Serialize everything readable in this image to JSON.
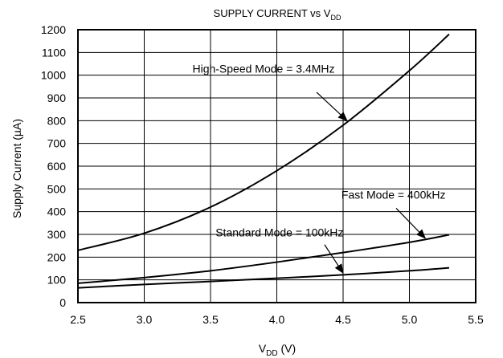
{
  "chart_data": {
    "type": "line",
    "title": "SUPPLY CURRENT vs V",
    "title_sub": "DD",
    "xlabel": "V",
    "xlabel_sub": "DD",
    "xlabel_suffix": " (V)",
    "ylabel": "Supply Current (µA)",
    "xlim": [
      2.5,
      5.5
    ],
    "ylim": [
      0,
      1200
    ],
    "xticks": [
      2.5,
      3.0,
      3.5,
      4.0,
      4.5,
      5.0,
      5.5
    ],
    "xtick_labels": [
      "2.5",
      "3.0",
      "3.5",
      "4.0",
      "4.5",
      "5.0",
      "5.5"
    ],
    "yticks": [
      0,
      100,
      200,
      300,
      400,
      500,
      600,
      700,
      800,
      900,
      1000,
      1100,
      1200
    ],
    "ytick_labels": [
      "0",
      "100",
      "200",
      "300",
      "400",
      "500",
      "600",
      "700",
      "800",
      "900",
      "1000",
      "1100",
      "1200"
    ],
    "grid": true,
    "series": [
      {
        "name": "High-Speed Mode = 3.4MHz",
        "x": [
          2.5,
          3.0,
          3.5,
          4.0,
          4.5,
          5.0,
          5.3
        ],
        "y": [
          230,
          305,
          420,
          580,
          780,
          1020,
          1180
        ]
      },
      {
        "name": "Fast Mode = 400kHz",
        "x": [
          2.5,
          3.0,
          3.5,
          4.0,
          4.5,
          5.0,
          5.3
        ],
        "y": [
          85,
          110,
          140,
          178,
          220,
          265,
          298
        ]
      },
      {
        "name": "Standard Mode = 100kHz",
        "x": [
          2.5,
          3.0,
          3.5,
          4.0,
          4.5,
          5.0,
          5.3
        ],
        "y": [
          65,
          80,
          93,
          107,
          122,
          140,
          153
        ]
      }
    ],
    "annotations": [
      {
        "series": 0,
        "label": "High-Speed Mode = 3.4MHz",
        "text_x": 3.9,
        "text_y": 1012,
        "anchor": "middle",
        "arrow_from": [
          4.3,
          925
        ],
        "arrow_to": [
          4.53,
          800
        ]
      },
      {
        "series": 1,
        "label": "Fast Mode = 400kHz",
        "text_x": 4.88,
        "text_y": 457,
        "anchor": "middle",
        "arrow_from": [
          4.9,
          415
        ],
        "arrow_to": [
          5.12,
          283
        ]
      },
      {
        "series": 2,
        "label": "Standard Mode = 100kHz",
        "text_x": 4.02,
        "text_y": 292,
        "anchor": "middle",
        "arrow_from": [
          4.36,
          255
        ],
        "arrow_to": [
          4.5,
          130
        ]
      }
    ]
  }
}
